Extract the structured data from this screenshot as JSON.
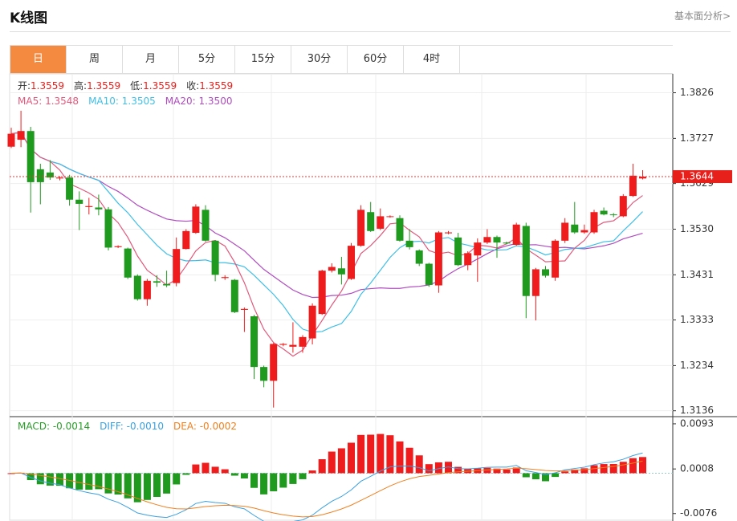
{
  "header": {
    "title": "K线图",
    "link": "基本面分析>"
  },
  "tabs": [
    "日",
    "周",
    "月",
    "5分",
    "15分",
    "30分",
    "60分",
    "4时"
  ],
  "info": [
    {
      "label": "开:",
      "value": "1.3559"
    },
    {
      "label": "高:",
      "value": "1.3559"
    },
    {
      "label": "低:",
      "value": "1.3559"
    },
    {
      "label": "收:",
      "value": "1.3559"
    }
  ],
  "ma_legend": [
    {
      "label": "MA5: ",
      "value": "1.3548",
      "color": "#e05a7c"
    },
    {
      "label": "MA10: ",
      "value": "1.3505",
      "color": "#3fbfe6"
    },
    {
      "label": "MA20: ",
      "value": "1.3500",
      "color": "#b04cc0"
    }
  ],
  "macd_legend": [
    {
      "label": "MACD: ",
      "value": "-0.0014",
      "color": "#2a9d2a"
    },
    {
      "label": "DIFF: ",
      "value": "-0.0010",
      "color": "#3aa0e0"
    },
    {
      "label": "DEA: ",
      "value": "-0.0002",
      "color": "#f08020"
    }
  ],
  "chart_data": {
    "type": "candlestick",
    "up_color": "#ee1c1c",
    "down_color": "#1f9a1f",
    "open": [
      1.3709,
      1.3724,
      1.3743,
      1.366,
      1.3653,
      1.364,
      1.3642,
      1.3594,
      1.3578,
      1.3577,
      1.3573,
      1.3491,
      1.3488,
      1.3429,
      1.3378,
      1.3417,
      1.3411,
      1.3413,
      1.3487,
      1.3522,
      1.3572,
      1.3505,
      1.3424,
      1.342,
      1.3355,
      1.3341,
      1.3231,
      1.3201,
      1.3279,
      1.3275,
      1.3275,
      1.3293,
      1.3346,
      1.344,
      1.3445,
      1.3422,
      1.3494,
      1.3567,
      1.3531,
      1.3557,
      1.3554,
      1.3505,
      1.3484,
      1.3455,
      1.3408,
      1.3521,
      1.3512,
      1.3452,
      1.3473,
      1.3501,
      1.3513,
      1.3501,
      1.3496,
      1.3537,
      1.3385,
      1.3443,
      1.3425,
      1.3505,
      1.354,
      1.3523,
      1.3523,
      1.357,
      1.3562,
      1.3558,
      1.3602,
      1.364
    ],
    "high": [
      1.375,
      1.3787,
      1.3752,
      1.3672,
      1.368,
      1.3645,
      1.3648,
      1.3612,
      1.3598,
      1.3605,
      1.3578,
      1.3495,
      1.349,
      1.3432,
      1.3422,
      1.343,
      1.344,
      1.3512,
      1.353,
      1.3584,
      1.3582,
      1.3506,
      1.343,
      1.3422,
      1.336,
      1.3344,
      1.3234,
      1.3283,
      1.3283,
      1.3328,
      1.33,
      1.3369,
      1.3442,
      1.3456,
      1.347,
      1.35,
      1.3582,
      1.3589,
      1.3575,
      1.356,
      1.356,
      1.353,
      1.3486,
      1.3457,
      1.3526,
      1.3526,
      1.3522,
      1.3482,
      1.351,
      1.353,
      1.3516,
      1.3503,
      1.3544,
      1.3544,
      1.3446,
      1.345,
      1.3508,
      1.3554,
      1.3589,
      1.354,
      1.3572,
      1.3577,
      1.3565,
      1.3606,
      1.3672,
      1.3658
    ],
    "low": [
      1.3706,
      1.3708,
      1.3566,
      1.3584,
      1.3637,
      1.3636,
      1.3581,
      1.3528,
      1.3562,
      1.356,
      1.3484,
      1.3489,
      1.3422,
      1.3375,
      1.3364,
      1.3405,
      1.3404,
      1.3406,
      1.3486,
      1.352,
      1.3503,
      1.3417,
      1.342,
      1.3348,
      1.3307,
      1.3205,
      1.3187,
      1.3143,
      1.3276,
      1.3262,
      1.3262,
      1.328,
      1.3344,
      1.3436,
      1.341,
      1.342,
      1.3492,
      1.3524,
      1.3528,
      1.3555,
      1.3503,
      1.3486,
      1.345,
      1.3405,
      1.3392,
      1.3519,
      1.345,
      1.3441,
      1.3416,
      1.3498,
      1.3468,
      1.3497,
      1.3494,
      1.3337,
      1.3332,
      1.3425,
      1.3418,
      1.35,
      1.352,
      1.352,
      1.352,
      1.356,
      1.3556,
      1.3556,
      1.36,
      1.3638
    ],
    "close": [
      1.3737,
      1.3743,
      1.3632,
      1.3632,
      1.3642,
      1.3642,
      1.3594,
      1.3585,
      1.358,
      1.3573,
      1.349,
      1.3493,
      1.3425,
      1.3378,
      1.3418,
      1.3414,
      1.3408,
      1.3487,
      1.3526,
      1.3579,
      1.3505,
      1.3431,
      1.3426,
      1.335,
      1.3357,
      1.3231,
      1.3201,
      1.3281,
      1.3281,
      1.3279,
      1.3296,
      1.3364,
      1.344,
      1.3448,
      1.3432,
      1.3494,
      1.3572,
      1.3526,
      1.3558,
      1.3558,
      1.3505,
      1.3491,
      1.3455,
      1.3409,
      1.3523,
      1.3523,
      1.3452,
      1.3478,
      1.3501,
      1.3513,
      1.3501,
      1.3499,
      1.354,
      1.3385,
      1.3443,
      1.3429,
      1.3505,
      1.3544,
      1.3523,
      1.3528,
      1.3567,
      1.3562,
      1.3561,
      1.3602,
      1.3646,
      1.3644
    ],
    "ylim": [
      1.3125,
      1.3867
    ],
    "yticks": [
      1.3826,
      1.3727,
      {
        "value": 1.3629,
        "label": "1.3629"
      },
      {
        "value": 1.353,
        "label": "1.3530"
      },
      1.3431,
      1.3333,
      1.3234,
      1.3136
    ],
    "last_price": 1.3644,
    "macd_ylim": [
      -0.009,
      0.0105
    ],
    "macd_yticks": [
      0.0093,
      0.0008,
      -0.0076
    ],
    "grid": true
  }
}
